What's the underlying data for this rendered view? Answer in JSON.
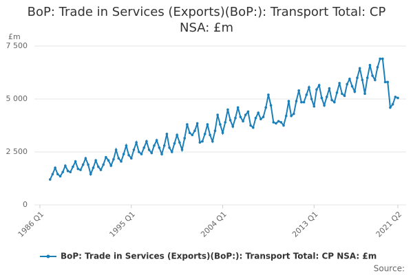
{
  "chart_data": {
    "type": "line",
    "title": "BoP: Trade in Services (Exports)(BoP:): Transport Total: CP NSA: £m",
    "y_label": "£m",
    "source": "Source:",
    "categories": [
      "1986 Q1",
      null,
      null,
      null,
      null,
      null,
      null,
      null,
      null,
      null,
      null,
      null,
      null,
      null,
      null,
      null,
      null,
      null,
      null,
      null,
      null,
      null,
      null,
      null,
      null,
      null,
      null,
      null,
      null,
      null,
      null,
      null,
      null,
      null,
      null,
      null,
      "1995 Q1",
      null,
      null,
      null,
      null,
      null,
      null,
      null,
      null,
      null,
      null,
      null,
      null,
      null,
      null,
      null,
      null,
      null,
      null,
      null,
      null,
      null,
      null,
      null,
      null,
      null,
      null,
      null,
      null,
      null,
      null,
      null,
      null,
      null,
      null,
      null,
      "2004 Q1",
      null,
      null,
      null,
      null,
      null,
      null,
      null,
      null,
      null,
      null,
      null,
      null,
      null,
      null,
      null,
      null,
      null,
      null,
      null,
      null,
      null,
      null,
      null,
      null,
      null,
      null,
      null,
      null,
      null,
      null,
      null,
      null,
      null,
      null,
      null,
      "2013 Q1",
      null,
      null,
      null,
      null,
      null,
      null,
      null,
      null,
      null,
      null,
      null,
      null,
      null,
      null,
      null,
      null,
      null,
      null,
      null,
      null,
      null,
      null,
      null,
      null,
      null,
      null,
      null,
      null,
      null,
      null,
      null,
      null,
      "2021 Q2"
    ],
    "series": [
      {
        "name": "BoP: Trade in Services (Exports)(BoP:): Transport Total: CP NSA: £m",
        "color": "#1a7fb9",
        "values": [
          null,
          null,
          null,
          null,
          1200,
          1450,
          1750,
          1450,
          1350,
          1550,
          1850,
          1600,
          1550,
          1800,
          2050,
          1700,
          1650,
          1900,
          2200,
          1900,
          1450,
          1750,
          2100,
          1800,
          1650,
          1900,
          2250,
          2100,
          1850,
          2150,
          2600,
          2200,
          2050,
          2400,
          2800,
          2350,
          2200,
          2600,
          2950,
          2500,
          2400,
          2700,
          3000,
          2600,
          2450,
          2800,
          3050,
          2700,
          2400,
          2800,
          3350,
          2700,
          2500,
          2900,
          3300,
          2950,
          2600,
          3150,
          3800,
          3400,
          3300,
          3500,
          3850,
          2950,
          3000,
          3350,
          3800,
          3300,
          3000,
          3500,
          4250,
          3800,
          3400,
          3900,
          4500,
          4000,
          3700,
          4100,
          4600,
          4150,
          3950,
          4250,
          4400,
          3750,
          3650,
          4100,
          4350,
          4050,
          4150,
          4600,
          5200,
          4700,
          3900,
          3850,
          3950,
          3900,
          3750,
          4200,
          4900,
          4200,
          4300,
          4900,
          5400,
          4850,
          4850,
          5200,
          5550,
          5000,
          4650,
          5450,
          5650,
          5050,
          4700,
          5100,
          5500,
          4950,
          4850,
          5300,
          5750,
          5250,
          5150,
          5700,
          5950,
          5600,
          5350,
          6000,
          6450,
          5900,
          5250,
          6000,
          6600,
          6100,
          5900,
          6500,
          6900,
          6900,
          5800,
          5800,
          4600,
          4750,
          5100,
          5050
        ]
      }
    ],
    "ylim": [
      0,
      7500
    ],
    "yticks": [
      0,
      {
        "value": 2500,
        "label": "2 500"
      },
      {
        "value": 5000,
        "label": "5 000"
      },
      {
        "value": 7500,
        "label": "7 500"
      }
    ],
    "grid": true
  }
}
